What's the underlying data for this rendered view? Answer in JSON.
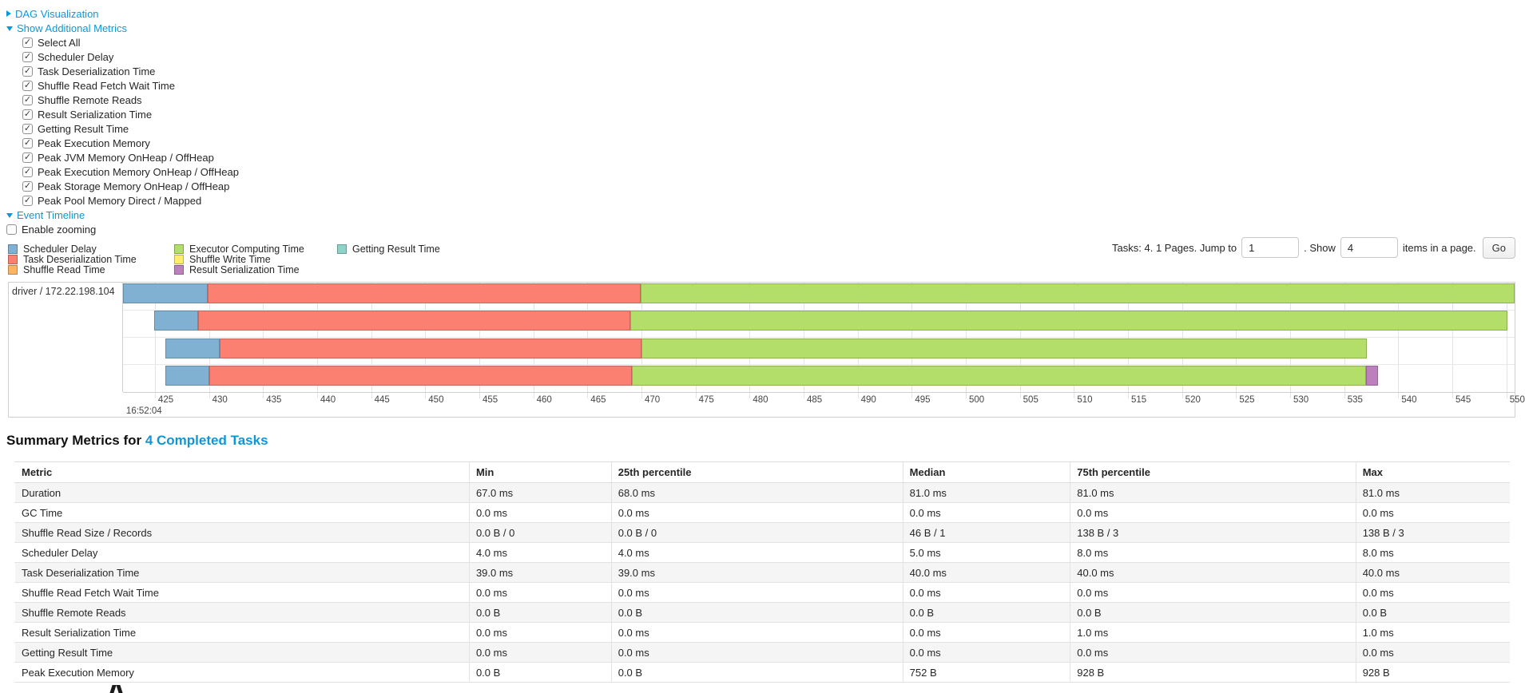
{
  "controls": {
    "dag": {
      "label": "DAG Visualization",
      "state": "collapsed"
    },
    "metrics": {
      "label": "Show Additional Metrics",
      "state": "expanded",
      "items": [
        {
          "label": "Select All",
          "checked": true
        },
        {
          "label": "Scheduler Delay",
          "checked": true
        },
        {
          "label": "Task Deserialization Time",
          "checked": true
        },
        {
          "label": "Shuffle Read Fetch Wait Time",
          "checked": true
        },
        {
          "label": "Shuffle Remote Reads",
          "checked": true
        },
        {
          "label": "Result Serialization Time",
          "checked": true
        },
        {
          "label": "Getting Result Time",
          "checked": true
        },
        {
          "label": "Peak Execution Memory",
          "checked": true
        },
        {
          "label": "Peak JVM Memory OnHeap / OffHeap",
          "checked": true
        },
        {
          "label": "Peak Execution Memory OnHeap / OffHeap",
          "checked": true
        },
        {
          "label": "Peak Storage Memory OnHeap / OffHeap",
          "checked": true
        },
        {
          "label": "Peak Pool Memory Direct / Mapped",
          "checked": true
        }
      ]
    },
    "timeline": {
      "label": "Event Timeline",
      "state": "expanded"
    },
    "enable_zooming": {
      "label": "Enable zooming",
      "checked": false
    }
  },
  "pagination": {
    "prefix": "Tasks: 4. 1 Pages. Jump to",
    "jump_value": "1",
    "mid": ". Show",
    "show_value": "4",
    "suffix": "items in a page.",
    "go_label": "Go"
  },
  "palette": {
    "scheduler-delay": "#80B1D3",
    "task-deserialization": "#FB8072",
    "shuffle-read": "#FDB462",
    "executor-computing": "#B3DE69",
    "shuffle-write": "#FFED6F",
    "result-serialization": "#BC80BD",
    "getting-result": "#8DD3C7"
  },
  "legend_columns": [
    [
      {
        "key": "scheduler-delay",
        "label": "Scheduler Delay"
      },
      {
        "key": "task-deserialization",
        "label": "Task Deserialization Time"
      },
      {
        "key": "shuffle-read",
        "label": "Shuffle Read Time"
      }
    ],
    [
      {
        "key": "executor-computing",
        "label": "Executor Computing Time"
      },
      {
        "key": "shuffle-write",
        "label": "Shuffle Write Time"
      },
      {
        "key": "result-serialization",
        "label": "Result Serialization Time"
      }
    ],
    [
      {
        "key": "getting-result",
        "label": "Getting Result Time"
      }
    ]
  ],
  "chart_data": {
    "type": "timeline",
    "row_label": "driver / 172.22.198.104",
    "x_axis": {
      "start": 422.05,
      "end": 550.76,
      "tick_start": 425,
      "tick_end": 550,
      "tick_step": 5,
      "major_label": "16:52:04",
      "major_tick": 425
    },
    "tasks": [
      {
        "segments": [
          {
            "name": "scheduler-delay",
            "start": 422.05,
            "end": 429.9
          },
          {
            "name": "task-deserialization",
            "start": 429.9,
            "end": 469.9
          },
          {
            "name": "executor-computing",
            "start": 469.9,
            "end": 550.76
          }
        ]
      },
      {
        "segments": [
          {
            "name": "scheduler-delay",
            "start": 424.9,
            "end": 429.0
          },
          {
            "name": "task-deserialization",
            "start": 429.0,
            "end": 469.0
          },
          {
            "name": "executor-computing",
            "start": 469.0,
            "end": 550.1
          }
        ]
      },
      {
        "segments": [
          {
            "name": "scheduler-delay",
            "start": 426.0,
            "end": 431.0
          },
          {
            "name": "task-deserialization",
            "start": 431.0,
            "end": 470.0
          },
          {
            "name": "executor-computing",
            "start": 470.0,
            "end": 537.1
          }
        ]
      },
      {
        "segments": [
          {
            "name": "scheduler-delay",
            "start": 426.0,
            "end": 430.0
          },
          {
            "name": "task-deserialization",
            "start": 430.0,
            "end": 469.1
          },
          {
            "name": "executor-computing",
            "start": 469.1,
            "end": 537.0
          },
          {
            "name": "result-serialization",
            "start": 537.0,
            "end": 538.1
          }
        ]
      }
    ]
  },
  "summary": {
    "title_prefix": "Summary Metrics for ",
    "title_link": "4 Completed Tasks"
  },
  "table": {
    "headers": [
      "Metric",
      "Min",
      "25th percentile",
      "Median",
      "75th percentile",
      "Max"
    ],
    "rows": [
      [
        "Duration",
        "67.0 ms",
        "68.0 ms",
        "81.0 ms",
        "81.0 ms",
        "81.0 ms"
      ],
      [
        "GC Time",
        "0.0 ms",
        "0.0 ms",
        "0.0 ms",
        "0.0 ms",
        "0.0 ms"
      ],
      [
        "Shuffle Read Size / Records",
        "0.0 B / 0",
        "0.0 B / 0",
        "46 B / 1",
        "138 B / 3",
        "138 B / 3"
      ],
      [
        "Scheduler Delay",
        "4.0 ms",
        "4.0 ms",
        "5.0 ms",
        "8.0 ms",
        "8.0 ms"
      ],
      [
        "Task Deserialization Time",
        "39.0 ms",
        "39.0 ms",
        "40.0 ms",
        "40.0 ms",
        "40.0 ms"
      ],
      [
        "Shuffle Read Fetch Wait Time",
        "0.0 ms",
        "0.0 ms",
        "0.0 ms",
        "0.0 ms",
        "0.0 ms"
      ],
      [
        "Shuffle Remote Reads",
        "0.0 B",
        "0.0 B",
        "0.0 B",
        "0.0 B",
        "0.0 B"
      ],
      [
        "Result Serialization Time",
        "0.0 ms",
        "0.0 ms",
        "0.0 ms",
        "1.0 ms",
        "1.0 ms"
      ],
      [
        "Getting Result Time",
        "0.0 ms",
        "0.0 ms",
        "0.0 ms",
        "0.0 ms",
        "0.0 ms"
      ],
      [
        "Peak Execution Memory",
        "0.0 B",
        "0.0 B",
        "752 B",
        "928 B",
        "928 B"
      ]
    ]
  }
}
